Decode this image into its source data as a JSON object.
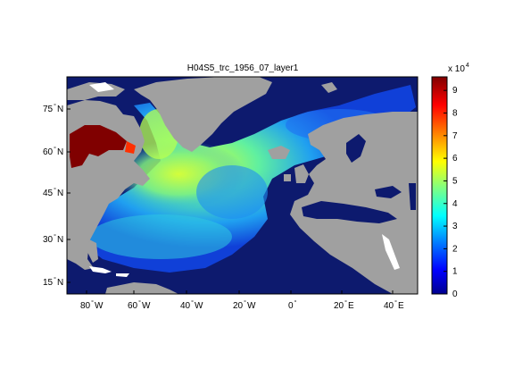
{
  "title": "H04S5_trc_1956_07_layer1",
  "colorbar": {
    "multiplier": "x 10",
    "exponent": "4",
    "ticks": [
      "0",
      "1",
      "2",
      "3",
      "4",
      "5",
      "6",
      "7",
      "8",
      "9"
    ]
  },
  "axes": {
    "x_ticks": [
      {
        "label": "80",
        "hemi": "W"
      },
      {
        "label": "60",
        "hemi": "W"
      },
      {
        "label": "40",
        "hemi": "W"
      },
      {
        "label": "20",
        "hemi": "W"
      },
      {
        "label": "0",
        "hemi": ""
      },
      {
        "label": "20",
        "hemi": "E"
      },
      {
        "label": "40",
        "hemi": "E"
      }
    ],
    "y_ticks": [
      {
        "label": "75",
        "hemi": "N"
      },
      {
        "label": "60",
        "hemi": "N"
      },
      {
        "label": "45",
        "hemi": "N"
      },
      {
        "label": "30",
        "hemi": "N"
      },
      {
        "label": "15",
        "hemi": "N"
      }
    ],
    "degree_symbol": "°"
  },
  "colors": {
    "land": "#a0a0a0",
    "ocean_low": "#0d1a6e",
    "colormap": [
      "#00008f",
      "#0000ff",
      "#0080ff",
      "#00ffff",
      "#80ff80",
      "#ffff00",
      "#ff8000",
      "#ff0000",
      "#800000"
    ]
  }
}
